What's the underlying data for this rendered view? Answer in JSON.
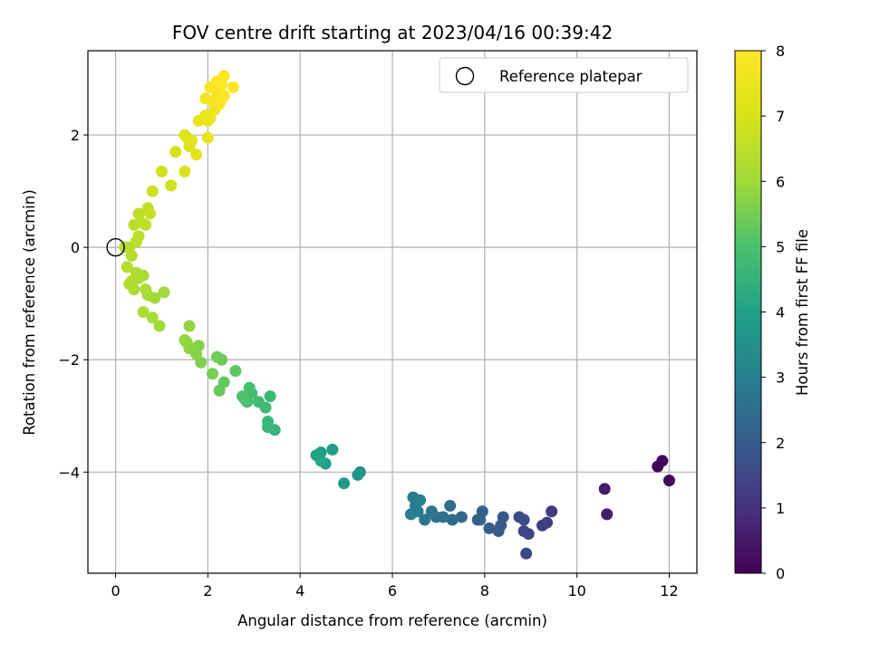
{
  "chart_data": {
    "type": "scatter",
    "title": "FOV centre drift starting at 2023/04/16 00:39:42",
    "xlabel": "Angular distance from reference (arcmin)",
    "ylabel": "Rotation from reference (arcmin)",
    "xlim": [
      -0.6,
      12.6
    ],
    "ylim": [
      -5.8,
      3.5
    ],
    "x_ticks": [
      0,
      2,
      4,
      6,
      8,
      10,
      12
    ],
    "y_ticks": [
      -4,
      -2,
      0,
      2
    ],
    "grid": true,
    "legend": {
      "position": "top-right",
      "entries": [
        "Reference platepar"
      ]
    },
    "reference_point": {
      "x": 0,
      "y": 0,
      "label": "Reference platepar"
    },
    "colorbar": {
      "label": "Hours from first FF file",
      "range": [
        0,
        8
      ],
      "ticks": [
        0,
        1,
        2,
        3,
        4,
        5,
        6,
        7,
        8
      ],
      "colormap": "viridis"
    },
    "points": [
      [
        11.85,
        -3.8,
        0.05
      ],
      [
        11.75,
        -3.9,
        0.1
      ],
      [
        12.0,
        -4.15,
        0.15
      ],
      [
        10.6,
        -4.3,
        0.5
      ],
      [
        10.65,
        -4.75,
        0.6
      ],
      [
        9.45,
        -4.7,
        1.2
      ],
      [
        9.35,
        -4.9,
        1.25
      ],
      [
        9.25,
        -4.95,
        1.3
      ],
      [
        8.95,
        -5.1,
        1.45
      ],
      [
        8.85,
        -5.05,
        1.5
      ],
      [
        8.9,
        -5.45,
        1.55
      ],
      [
        8.75,
        -4.8,
        1.6
      ],
      [
        8.85,
        -4.85,
        1.65
      ],
      [
        8.4,
        -4.8,
        1.9
      ],
      [
        8.35,
        -4.95,
        1.95
      ],
      [
        8.3,
        -5.05,
        2.0
      ],
      [
        8.1,
        -5.0,
        2.05
      ],
      [
        7.95,
        -4.7,
        2.1
      ],
      [
        7.9,
        -4.85,
        2.15
      ],
      [
        7.85,
        -4.85,
        2.2
      ],
      [
        7.5,
        -4.8,
        2.35
      ],
      [
        7.3,
        -4.85,
        2.4
      ],
      [
        7.25,
        -4.6,
        2.45
      ],
      [
        7.1,
        -4.8,
        2.55
      ],
      [
        6.95,
        -4.8,
        2.6
      ],
      [
        6.85,
        -4.7,
        2.7
      ],
      [
        6.7,
        -4.85,
        2.75
      ],
      [
        6.5,
        -4.6,
        2.85
      ],
      [
        6.45,
        -4.45,
        2.9
      ],
      [
        6.55,
        -4.7,
        2.95
      ],
      [
        6.4,
        -4.75,
        3.0
      ],
      [
        6.6,
        -4.5,
        3.05
      ],
      [
        5.3,
        -4.0,
        3.6
      ],
      [
        5.25,
        -4.05,
        3.65
      ],
      [
        4.95,
        -4.2,
        3.75
      ],
      [
        4.7,
        -3.6,
        3.9
      ],
      [
        4.55,
        -3.85,
        3.95
      ],
      [
        4.45,
        -3.65,
        4.0
      ],
      [
        4.35,
        -3.7,
        4.05
      ],
      [
        4.45,
        -3.8,
        4.1
      ],
      [
        3.45,
        -3.25,
        4.55
      ],
      [
        3.3,
        -3.2,
        4.6
      ],
      [
        3.35,
        -2.65,
        4.65
      ],
      [
        3.3,
        -3.1,
        4.7
      ],
      [
        3.25,
        -2.85,
        4.75
      ],
      [
        3.1,
        -2.75,
        4.8
      ],
      [
        2.95,
        -2.6,
        4.85
      ],
      [
        2.9,
        -2.5,
        4.9
      ],
      [
        2.85,
        -2.75,
        4.95
      ],
      [
        2.8,
        -2.7,
        5.0
      ],
      [
        2.75,
        -2.65,
        5.05
      ],
      [
        2.6,
        -2.2,
        5.2
      ],
      [
        2.35,
        -2.4,
        5.3
      ],
      [
        2.25,
        -2.55,
        5.35
      ],
      [
        2.3,
        -2.0,
        5.4
      ],
      [
        2.2,
        -1.95,
        5.45
      ],
      [
        2.1,
        -2.25,
        5.5
      ],
      [
        1.85,
        -2.05,
        5.6
      ],
      [
        1.8,
        -1.75,
        5.65
      ],
      [
        1.75,
        -1.9,
        5.7
      ],
      [
        1.6,
        -1.8,
        5.75
      ],
      [
        1.55,
        -1.7,
        5.8
      ],
      [
        1.6,
        -1.4,
        5.85
      ],
      [
        1.5,
        -1.65,
        5.85
      ],
      [
        1.05,
        -0.8,
        6.0
      ],
      [
        0.95,
        -1.4,
        6.05
      ],
      [
        0.85,
        -0.9,
        6.05
      ],
      [
        0.8,
        -1.25,
        6.1
      ],
      [
        0.7,
        -0.85,
        6.1
      ],
      [
        0.65,
        -0.75,
        6.15
      ],
      [
        0.6,
        -0.5,
        6.15
      ],
      [
        0.6,
        -1.15,
        6.2
      ],
      [
        0.5,
        -0.55,
        6.2
      ],
      [
        0.45,
        -0.45,
        6.25
      ],
      [
        0.4,
        -0.75,
        6.25
      ],
      [
        0.35,
        -0.6,
        6.3
      ],
      [
        0.3,
        -0.65,
        6.3
      ],
      [
        0.25,
        -0.35,
        6.35
      ],
      [
        0.35,
        -0.15,
        6.35
      ],
      [
        0.3,
        0.0,
        6.4
      ],
      [
        0.2,
        0.0,
        6.4
      ],
      [
        0.45,
        0.1,
        6.45
      ],
      [
        0.5,
        0.2,
        6.45
      ],
      [
        0.4,
        0.4,
        6.5
      ],
      [
        0.55,
        0.45,
        6.5
      ],
      [
        0.5,
        0.6,
        6.55
      ],
      [
        0.65,
        0.4,
        6.55
      ],
      [
        0.7,
        0.7,
        6.6
      ],
      [
        0.75,
        0.6,
        6.65
      ],
      [
        0.8,
        1.0,
        6.75
      ],
      [
        1.0,
        1.35,
        6.85
      ],
      [
        1.2,
        1.1,
        6.85
      ],
      [
        1.3,
        1.7,
        7.0
      ],
      [
        1.5,
        1.35,
        7.05
      ],
      [
        1.55,
        1.95,
        7.1
      ],
      [
        1.5,
        2.0,
        7.15
      ],
      [
        1.6,
        1.8,
        7.2
      ],
      [
        1.75,
        1.65,
        7.25
      ],
      [
        1.65,
        1.9,
        7.25
      ],
      [
        1.8,
        2.25,
        7.4
      ],
      [
        2.0,
        1.95,
        7.45
      ],
      [
        1.95,
        2.35,
        7.5
      ],
      [
        2.0,
        2.25,
        7.55
      ],
      [
        2.05,
        2.3,
        7.6
      ],
      [
        2.15,
        2.45,
        7.65
      ],
      [
        1.95,
        2.65,
        7.7
      ],
      [
        2.2,
        2.75,
        7.75
      ],
      [
        2.1,
        2.6,
        7.75
      ],
      [
        2.05,
        2.85,
        7.8
      ],
      [
        2.25,
        2.55,
        7.85
      ],
      [
        2.3,
        2.65,
        7.85
      ],
      [
        2.2,
        2.95,
        7.9
      ],
      [
        2.35,
        3.05,
        7.95
      ],
      [
        2.35,
        2.7,
        7.95
      ],
      [
        2.55,
        2.85,
        8.0
      ],
      [
        2.3,
        2.9,
        8.0
      ]
    ]
  }
}
